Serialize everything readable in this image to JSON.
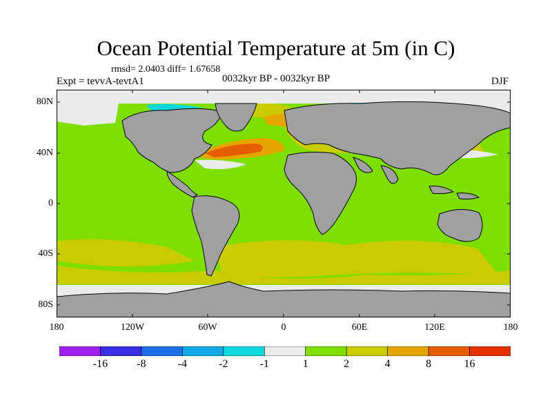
{
  "header": {
    "title": "Ocean Potential Temperature at 5m (in C)",
    "stats": "rmsd= 2.0403 diff= 1.67658",
    "experiment": "Expt = tevvA-tevtA1",
    "period": "0032kyr BP - 0032kyr BP",
    "season": "DJF"
  },
  "axes": {
    "lat_labels": [
      "80N",
      "40N",
      "0",
      "40S",
      "80S"
    ],
    "lon_labels": [
      "180",
      "120W",
      "60W",
      "0",
      "60E",
      "120E",
      "180"
    ]
  },
  "colors": {
    "land": "#a0a0a0",
    "coast": "#000000",
    "sea_ice": "#ebebeb"
  },
  "colorbar": {
    "colors": [
      "#a020f0",
      "#3a2ee0",
      "#1e6ee6",
      "#12a8e6",
      "#10d8dc",
      "#ebebeb",
      "#7dde00",
      "#c8cc00",
      "#e6a600",
      "#e65c00",
      "#e63000"
    ],
    "labels": [
      "-16",
      "-8",
      "-4",
      "-2",
      "-1",
      "1",
      "2",
      "4",
      "8",
      "16"
    ]
  }
}
